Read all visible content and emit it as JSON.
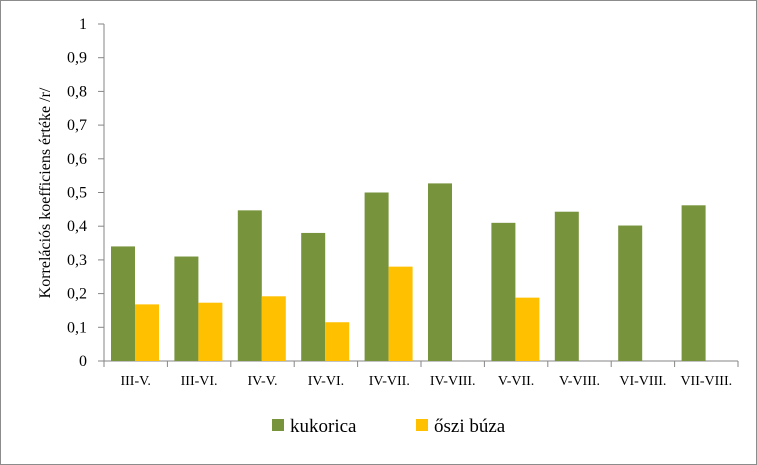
{
  "chart_data": {
    "type": "bar",
    "title": "",
    "xlabel": "",
    "ylabel": "Korrelációs koefficiens értéke /r/",
    "ylim": [
      0,
      1
    ],
    "yticks": [
      "0",
      "0,1",
      "0,2",
      "0,3",
      "0,4",
      "0,5",
      "0,6",
      "0,7",
      "0,8",
      "0,9",
      "1"
    ],
    "grid": false,
    "legend_position": "bottom",
    "categories": [
      "III-V.",
      "III-VI.",
      "IV-V.",
      "IV-VI.",
      "IV-VII.",
      "IV-VIII.",
      "V-VII.",
      "V-VIII.",
      "VI-VIII.",
      "VII-VIII."
    ],
    "series": [
      {
        "name": "kukorica",
        "color": "#77933C",
        "values": [
          0.34,
          0.31,
          0.447,
          0.38,
          0.5,
          0.527,
          0.41,
          0.443,
          0.402,
          0.462
        ]
      },
      {
        "name": "őszi búza",
        "color": "#FFC000",
        "values": [
          0.168,
          0.173,
          0.192,
          0.115,
          0.28,
          null,
          0.188,
          null,
          null,
          null
        ]
      }
    ]
  }
}
